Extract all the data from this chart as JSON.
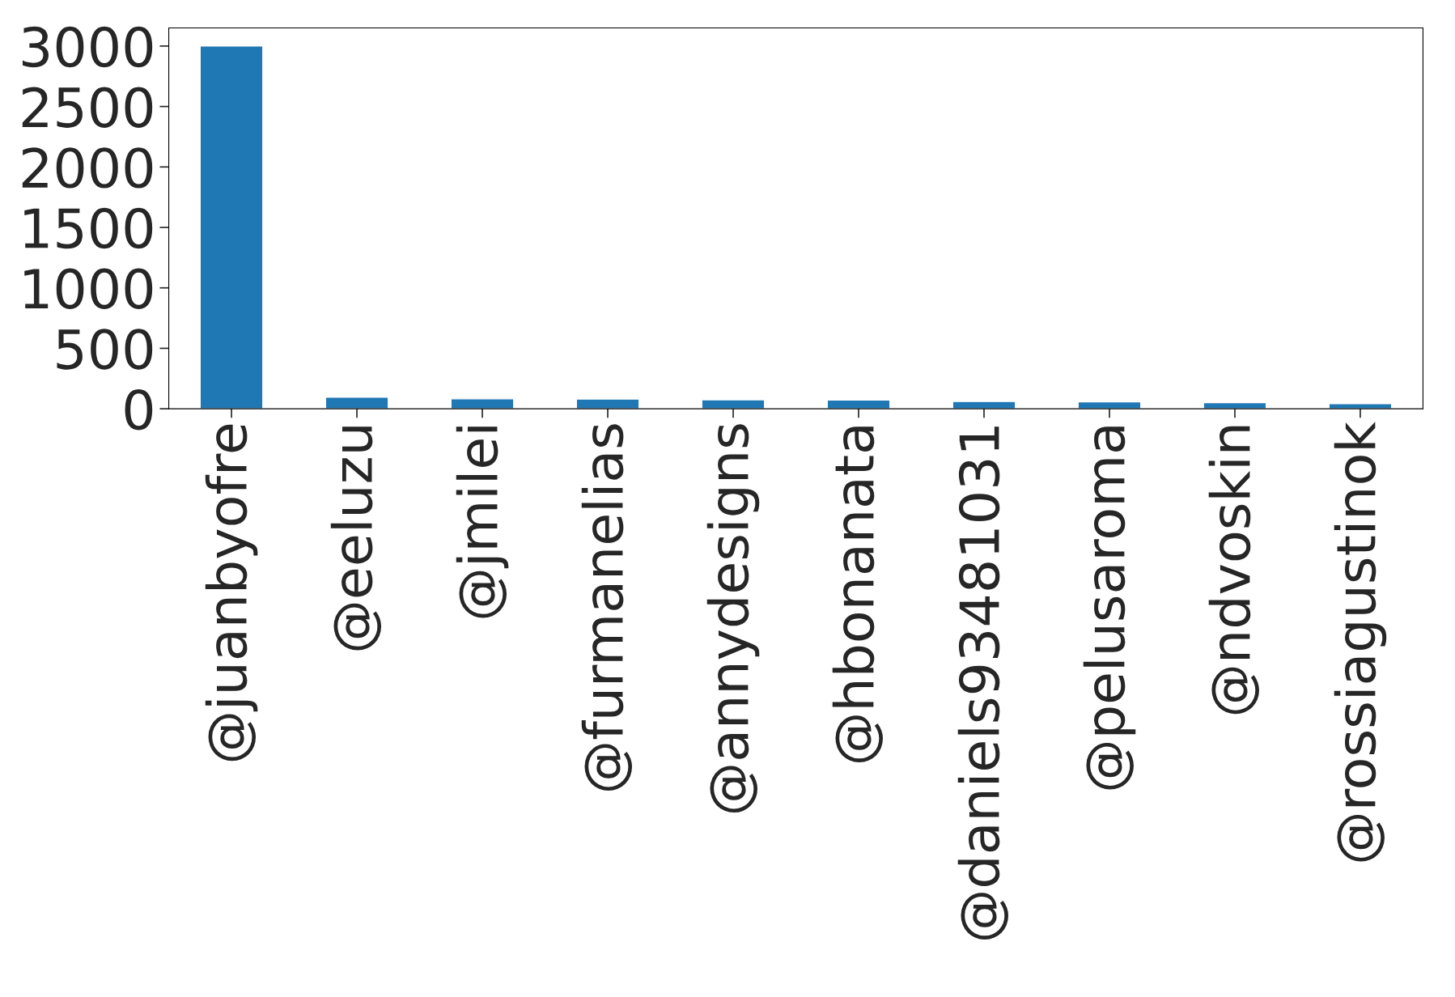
{
  "chart_data": {
    "type": "bar",
    "categories": [
      "@juanbyofre",
      "@eeluzu",
      "@jmilei",
      "@furmanelias",
      "@annydesigns",
      "@hbonanata",
      "@daniels93481031",
      "@pelusaroma",
      "@ndvoskin",
      "@rossiagustinok"
    ],
    "values": [
      3000,
      95,
      82,
      80,
      74,
      73,
      60,
      58,
      50,
      43
    ],
    "color": "#1f77b4",
    "ylim": [
      0,
      3150
    ],
    "yticks": [
      0,
      500,
      1000,
      1500,
      2000,
      2500,
      3000
    ],
    "grid": false,
    "legend": false
  }
}
